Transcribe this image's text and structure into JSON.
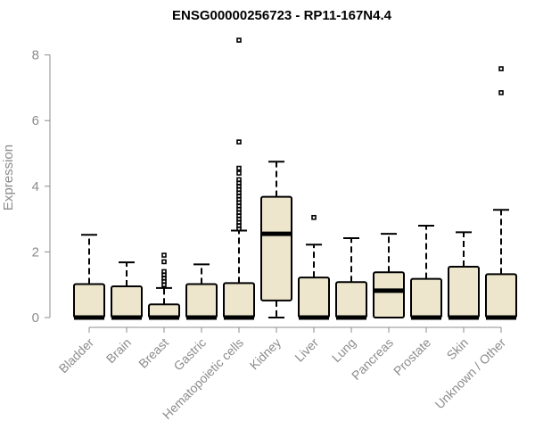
{
  "chart_data": {
    "type": "box",
    "title": "ENSG00000256723 - RP11-167N4.4",
    "ylabel": "Expression",
    "ylim": [
      0,
      8.6
    ],
    "yticks": [
      "0",
      "2",
      "4",
      "6",
      "8"
    ],
    "grid": false,
    "categories": [
      "Bladder",
      "Brain",
      "Breast",
      "Gastric",
      "Hematopoietic cells",
      "Kidney",
      "Liver",
      "Lung",
      "Pancreas",
      "Prostate",
      "Skin",
      "Unknown / Other"
    ],
    "boxes": [
      {
        "min": 0,
        "q1": 0,
        "median": 0,
        "q3": 1.02,
        "max": 2.52,
        "outliers": []
      },
      {
        "min": 0,
        "q1": 0,
        "median": 0,
        "q3": 0.95,
        "max": 1.68,
        "outliers": []
      },
      {
        "min": 0,
        "q1": 0,
        "median": 0,
        "q3": 0.4,
        "max": 0.9,
        "outliers": [
          1.0,
          1.1,
          1.2,
          1.3,
          1.4,
          1.7,
          1.9
        ]
      },
      {
        "min": 0,
        "q1": 0,
        "median": 0,
        "q3": 1.02,
        "max": 1.62,
        "outliers": []
      },
      {
        "min": 0,
        "q1": 0,
        "median": 0,
        "q3": 1.05,
        "max": 2.65,
        "outliers": [
          2.7,
          2.8,
          2.9,
          3.0,
          3.1,
          3.2,
          3.3,
          3.4,
          3.5,
          3.6,
          3.7,
          3.8,
          3.9,
          4.0,
          4.1,
          4.2,
          4.4,
          4.55,
          5.35,
          8.45
        ]
      },
      {
        "min": 0,
        "q1": 0.52,
        "median": 2.55,
        "q3": 3.68,
        "max": 4.75,
        "outliers": []
      },
      {
        "min": 0,
        "q1": 0,
        "median": 0,
        "q3": 1.22,
        "max": 2.22,
        "outliers": [
          3.05
        ]
      },
      {
        "min": 0,
        "q1": 0,
        "median": 0,
        "q3": 1.08,
        "max": 2.42,
        "outliers": []
      },
      {
        "min": 0,
        "q1": 0,
        "median": 0.82,
        "q3": 1.38,
        "max": 2.55,
        "outliers": []
      },
      {
        "min": 0,
        "q1": 0,
        "median": 0,
        "q3": 1.18,
        "max": 2.8,
        "outliers": []
      },
      {
        "min": 0,
        "q1": 0,
        "median": 0,
        "q3": 1.55,
        "max": 2.6,
        "outliers": []
      },
      {
        "min": 0,
        "q1": 0,
        "median": 0,
        "q3": 1.32,
        "max": 3.28,
        "outliers": [
          6.85,
          7.58
        ]
      }
    ],
    "colors": {
      "box_fill": "#ede6cd",
      "axis": "#8c8c8c",
      "line": "#000000"
    }
  }
}
